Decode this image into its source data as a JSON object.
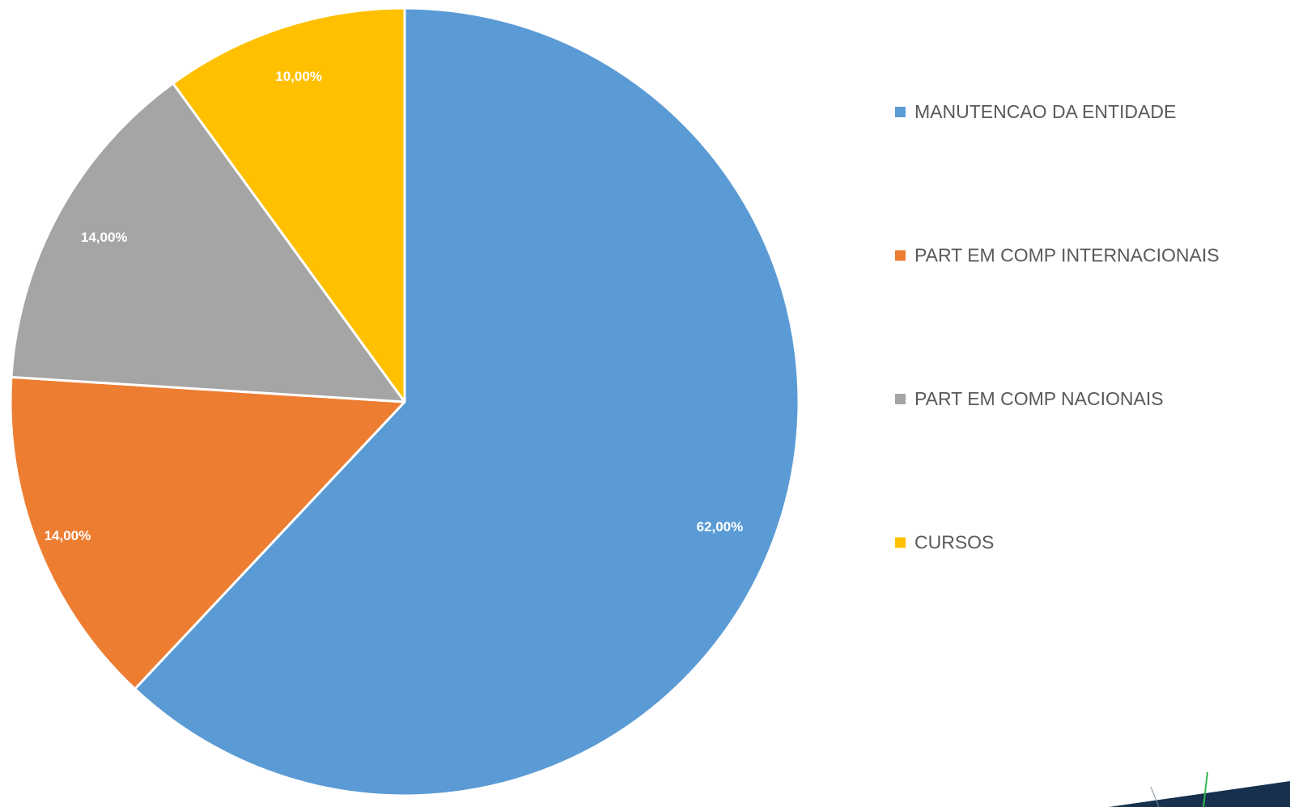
{
  "chart_data": {
    "type": "pie",
    "categories": [
      "MANUTENCAO DA ENTIDADE",
      "PART EM COMP INTERNACIONAIS",
      "PART EM COMP NACIONAIS",
      "CURSOS"
    ],
    "values": [
      62,
      14,
      14,
      10
    ],
    "data_labels": [
      "62,00%",
      "14,00%",
      "14,00%",
      "10,00%"
    ],
    "colors": [
      "#5B9BD5",
      "#ED7D31",
      "#A5A5A5",
      "#FFC000"
    ],
    "legend_position": "right",
    "start_angle": "top, clockwise"
  }
}
